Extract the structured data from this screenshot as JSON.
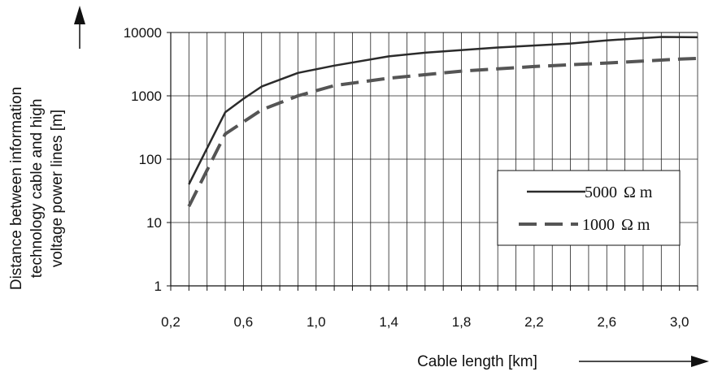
{
  "chart_data": {
    "type": "line",
    "title": "",
    "xlabel": "Cable length [km]",
    "ylabel_lines": [
      "Distance between information",
      "technology cable and high",
      "voltage power lines [m]"
    ],
    "xlim": [
      0.2,
      3.1
    ],
    "ylim": [
      1,
      10000
    ],
    "y_scale": "log",
    "x_ticks": [
      "0,2",
      "0,6",
      "1,0",
      "1,4",
      "1,8",
      "2,2",
      "2,6",
      "3,0"
    ],
    "x_tick_values": [
      0.2,
      0.6,
      1.0,
      1.4,
      1.8,
      2.2,
      2.6,
      3.0
    ],
    "y_ticks": [
      "1",
      "10",
      "100",
      "1000",
      "10000"
    ],
    "y_tick_values": [
      1,
      10,
      100,
      1000,
      10000
    ],
    "grid": true,
    "legend_position": "bottom-right",
    "series": [
      {
        "name_value": "5000",
        "name_unit": "Ω m",
        "style": "solid",
        "color": "#2b2b2b",
        "x": [
          0.3,
          0.5,
          0.6,
          0.7,
          0.9,
          1.1,
          1.4,
          1.6,
          2.0,
          2.4,
          2.6,
          2.9,
          3.1
        ],
        "y": [
          40,
          550,
          900,
          1400,
          2300,
          3000,
          4200,
          4800,
          5800,
          6700,
          7500,
          8500,
          8400
        ]
      },
      {
        "name_value": "1000",
        "name_unit": "Ω m",
        "style": "dashed",
        "color": "#555555",
        "x": [
          0.3,
          0.5,
          0.7,
          0.9,
          1.1,
          1.4,
          1.8,
          2.2,
          2.6,
          3.0,
          3.1
        ],
        "y": [
          18,
          250,
          600,
          1000,
          1450,
          1900,
          2450,
          2900,
          3300,
          3800,
          3900
        ]
      }
    ]
  }
}
